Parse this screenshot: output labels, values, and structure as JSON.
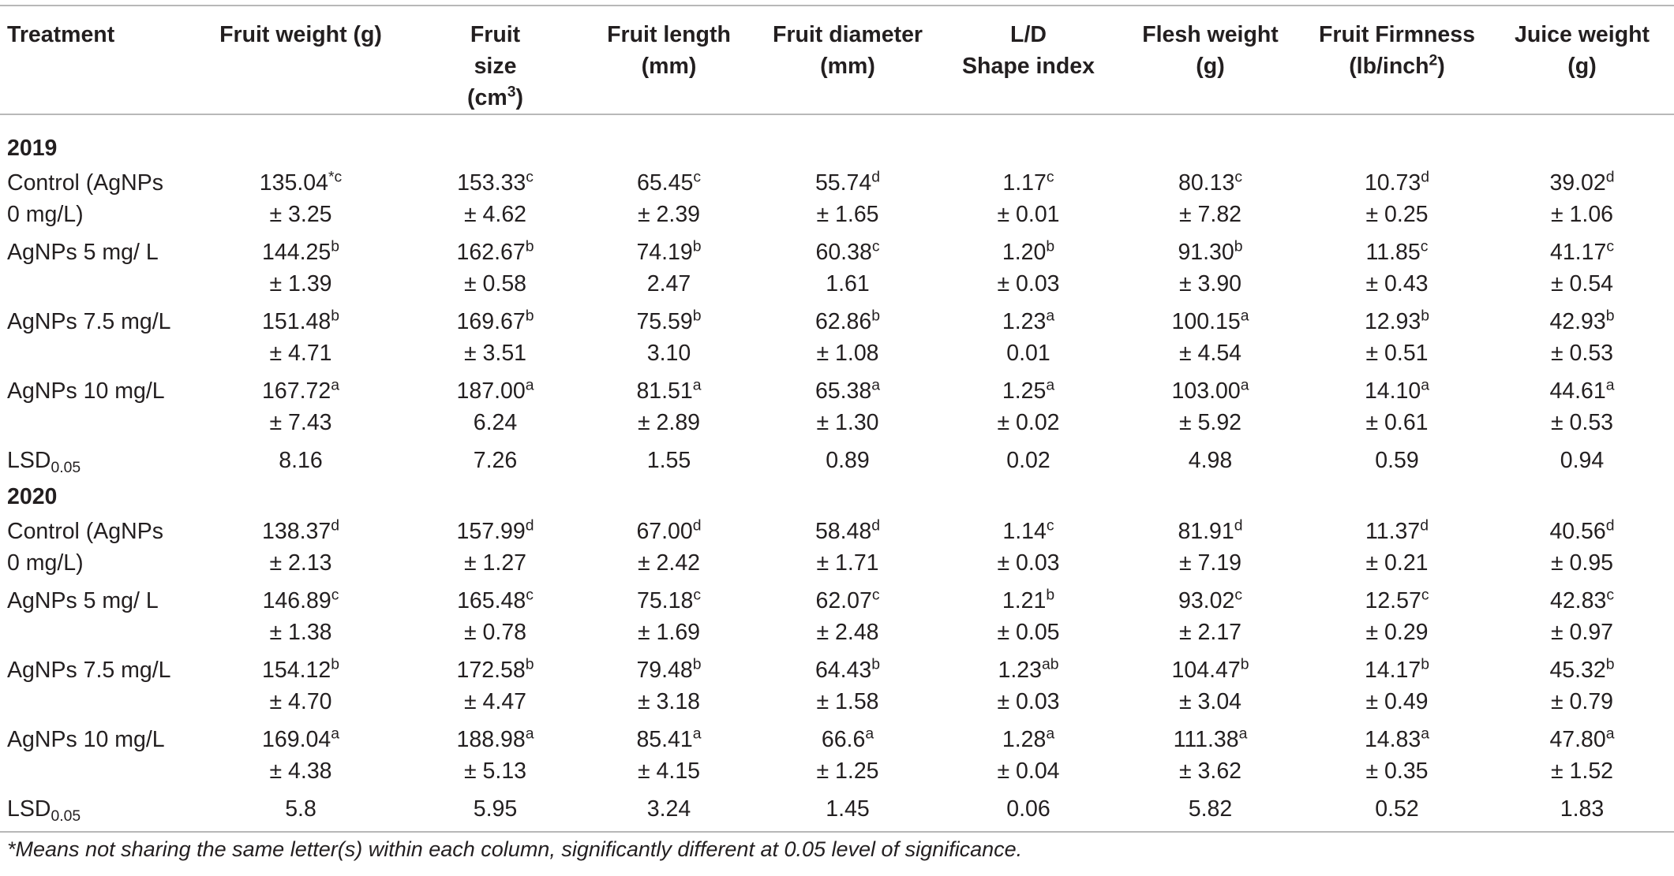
{
  "table": {
    "headers": {
      "treatment": "Treatment",
      "c1": "Fruit weight (g)",
      "c2": {
        "l1": "Fruit",
        "l2": "size",
        "l3": "(cm",
        "l3sup": "3",
        "l3end": ")"
      },
      "c3": {
        "l1": "Fruit length",
        "l2": "(mm)"
      },
      "c4": {
        "l1": "Fruit diameter",
        "l2": "(mm)"
      },
      "c5": {
        "l1": "L/D",
        "l2": "Shape index"
      },
      "c6": {
        "l1": "Flesh weight",
        "l2": "(g)"
      },
      "c7": {
        "l1": "Fruit Firmness",
        "l2": "(lb/inch",
        "l2sup": "2",
        "l2end": ")"
      },
      "c8": {
        "l1": "Juice weight",
        "l2": "(g)"
      }
    },
    "groups": [
      {
        "year": "2019",
        "rows": [
          {
            "label": {
              "l1": "Control (AgNPs",
              "l2": "0 mg/L)"
            },
            "cells": [
              {
                "v": "135.04",
                "s": "*c",
                "e": "± 3.25"
              },
              {
                "v": "153.33",
                "s": "c",
                "e": "± 4.62"
              },
              {
                "v": "65.45",
                "s": "c",
                "e": "± 2.39"
              },
              {
                "v": "55.74",
                "s": "d",
                "e": "± 1.65"
              },
              {
                "v": "1.17",
                "s": "c",
                "e": "± 0.01"
              },
              {
                "v": "80.13",
                "s": "c",
                "e": "± 7.82"
              },
              {
                "v": "10.73",
                "s": "d",
                "e": "± 0.25"
              },
              {
                "v": "39.02",
                "s": "d",
                "e": "± 1.06"
              }
            ]
          },
          {
            "label": {
              "l1": "AgNPs 5 mg/ L",
              "l2": ""
            },
            "cells": [
              {
                "v": "144.25",
                "s": "b",
                "e": "± 1.39"
              },
              {
                "v": "162.67",
                "s": "b",
                "e": "± 0.58"
              },
              {
                "v": "74.19",
                "s": "b",
                "e": "2.47"
              },
              {
                "v": "60.38",
                "s": "c",
                "e": "1.61"
              },
              {
                "v": "1.20",
                "s": "b",
                "e": "± 0.03"
              },
              {
                "v": "91.30",
                "s": "b",
                "e": "± 3.90"
              },
              {
                "v": "11.85",
                "s": "c",
                "e": "± 0.43"
              },
              {
                "v": "41.17",
                "s": "c",
                "e": "± 0.54"
              }
            ]
          },
          {
            "label": {
              "l1": "AgNPs 7.5 mg/L",
              "l2": ""
            },
            "cells": [
              {
                "v": "151.48",
                "s": "b",
                "e": "± 4.71"
              },
              {
                "v": "169.67",
                "s": "b",
                "e": "± 3.51"
              },
              {
                "v": "75.59",
                "s": "b",
                "e": "3.10"
              },
              {
                "v": "62.86",
                "s": "b",
                "e": "± 1.08"
              },
              {
                "v": "1.23",
                "s": "a",
                "e": "0.01"
              },
              {
                "v": "100.15",
                "s": "a",
                "e": "± 4.54"
              },
              {
                "v": "12.93",
                "s": "b",
                "e": "± 0.51"
              },
              {
                "v": "42.93",
                "s": "b",
                "e": "± 0.53"
              }
            ]
          },
          {
            "label": {
              "l1": "AgNPs 10 mg/L",
              "l2": ""
            },
            "cells": [
              {
                "v": "167.72",
                "s": "a",
                "e": "± 7.43"
              },
              {
                "v": "187.00",
                "s": "a",
                "e": "6.24"
              },
              {
                "v": "81.51",
                "s": "a",
                "e": "± 2.89"
              },
              {
                "v": "65.38",
                "s": "a",
                "e": "± 1.30"
              },
              {
                "v": "1.25",
                "s": "a",
                "e": "± 0.02"
              },
              {
                "v": "103.00",
                "s": "a",
                "e": "± 5.92"
              },
              {
                "v": "14.10",
                "s": "a",
                "e": "± 0.61"
              },
              {
                "v": "44.61",
                "s": "a",
                "e": "± 0.53"
              }
            ]
          }
        ],
        "lsd": {
          "label": "LSD",
          "sub": "0.05",
          "values": [
            "8.16",
            "7.26",
            "1.55",
            "0.89",
            "0.02",
            "4.98",
            "0.59",
            "0.94"
          ]
        }
      },
      {
        "year": "2020",
        "rows": [
          {
            "label": {
              "l1": "Control (AgNPs",
              "l2": "0 mg/L)"
            },
            "cells": [
              {
                "v": "138.37",
                "s": "d",
                "e": "± 2.13"
              },
              {
                "v": "157.99",
                "s": "d",
                "e": "± 1.27"
              },
              {
                "v": "67.00",
                "s": "d",
                "e": "± 2.42"
              },
              {
                "v": "58.48",
                "s": "d",
                "e": "± 1.71"
              },
              {
                "v": "1.14",
                "s": "c",
                "e": "± 0.03"
              },
              {
                "v": "81.91",
                "s": "d",
                "e": "± 7.19"
              },
              {
                "v": "11.37",
                "s": "d",
                "e": "± 0.21"
              },
              {
                "v": "40.56",
                "s": "d",
                "e": "± 0.95"
              }
            ]
          },
          {
            "label": {
              "l1": "AgNPs 5 mg/ L",
              "l2": ""
            },
            "cells": [
              {
                "v": "146.89",
                "s": "c",
                "e": "± 1.38"
              },
              {
                "v": "165.48",
                "s": "c",
                "e": "± 0.78"
              },
              {
                "v": "75.18",
                "s": "c",
                "e": "± 1.69"
              },
              {
                "v": "62.07",
                "s": "c",
                "e": "± 2.48"
              },
              {
                "v": "1.21",
                "s": "b",
                "e": "± 0.05"
              },
              {
                "v": "93.02",
                "s": "c",
                "e": "± 2.17"
              },
              {
                "v": "12.57",
                "s": "c",
                "e": "± 0.29"
              },
              {
                "v": "42.83",
                "s": "c",
                "e": "± 0.97"
              }
            ]
          },
          {
            "label": {
              "l1": "AgNPs 7.5 mg/L",
              "l2": ""
            },
            "cells": [
              {
                "v": "154.12",
                "s": "b",
                "e": "± 4.70"
              },
              {
                "v": "172.58",
                "s": "b",
                "e": "± 4.47"
              },
              {
                "v": "79.48",
                "s": "b",
                "e": "± 3.18"
              },
              {
                "v": "64.43",
                "s": "b",
                "e": "± 1.58"
              },
              {
                "v": "1.23",
                "s": "ab",
                "e": "± 0.03"
              },
              {
                "v": "104.47",
                "s": "b",
                "e": "± 3.04"
              },
              {
                "v": "14.17",
                "s": "b",
                "e": "± 0.49"
              },
              {
                "v": "45.32",
                "s": "b",
                "e": "± 0.79"
              }
            ]
          },
          {
            "label": {
              "l1": "AgNPs 10 mg/L",
              "l2": ""
            },
            "cells": [
              {
                "v": "169.04",
                "s": "a",
                "e": "± 4.38"
              },
              {
                "v": "188.98",
                "s": "a",
                "e": "± 5.13"
              },
              {
                "v": "85.41",
                "s": "a",
                "e": "± 4.15"
              },
              {
                "v": "66.6",
                "s": "a",
                "e": "± 1.25"
              },
              {
                "v": "1.28",
                "s": "a",
                "e": "± 0.04"
              },
              {
                "v": "111.38",
                "s": "a",
                "e": "± 3.62"
              },
              {
                "v": "14.83",
                "s": "a",
                "e": "± 0.35"
              },
              {
                "v": "47.80",
                "s": "a",
                "e": "± 1.52"
              }
            ]
          }
        ],
        "lsd": {
          "label": "LSD",
          "sub": "0.05",
          "values": [
            "5.8",
            "5.95",
            "3.24",
            "1.45",
            "0.06",
            "5.82",
            "0.52",
            "1.83"
          ]
        }
      }
    ]
  },
  "footnote": "*Means not sharing the same letter(s) within each column, significantly different at 0.05 level of significance."
}
